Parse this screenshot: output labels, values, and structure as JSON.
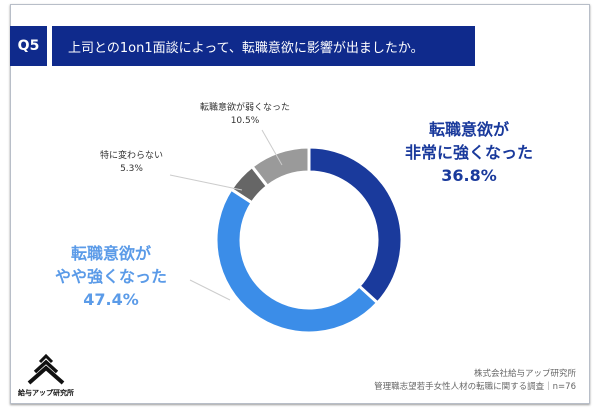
{
  "header": {
    "question_no": "Q5",
    "title": "上司との1on1面談によって、転職意欲に影響が出ましたか。"
  },
  "chart_data": {
    "type": "pie",
    "donut": true,
    "title": "上司との1on1面談によって、転職意欲に影響が出ましたか。",
    "slices": [
      {
        "label_lines": [
          "転職意欲が",
          "非常に強くなった"
        ],
        "value": 36.8,
        "value_label": "36.8%",
        "color": "#1a3a9c"
      },
      {
        "label_lines": [
          "転職意欲が",
          "やや強くなった"
        ],
        "value": 47.4,
        "value_label": "47.4%",
        "color": "#3b8de8"
      },
      {
        "label_lines": [
          "特に変わらない"
        ],
        "value": 5.3,
        "value_label": "5.3%",
        "color": "#666666"
      },
      {
        "label_lines": [
          "転職意欲が弱くなった"
        ],
        "value": 10.5,
        "value_label": "10.5%",
        "color": "#9a9a9a"
      }
    ]
  },
  "footer": {
    "company": "株式会社給与アップ研究所",
    "survey": "管理職志望若手女性人材の転職に関する調査｜n=76"
  },
  "logo": {
    "text": "給与アップ研究所"
  }
}
